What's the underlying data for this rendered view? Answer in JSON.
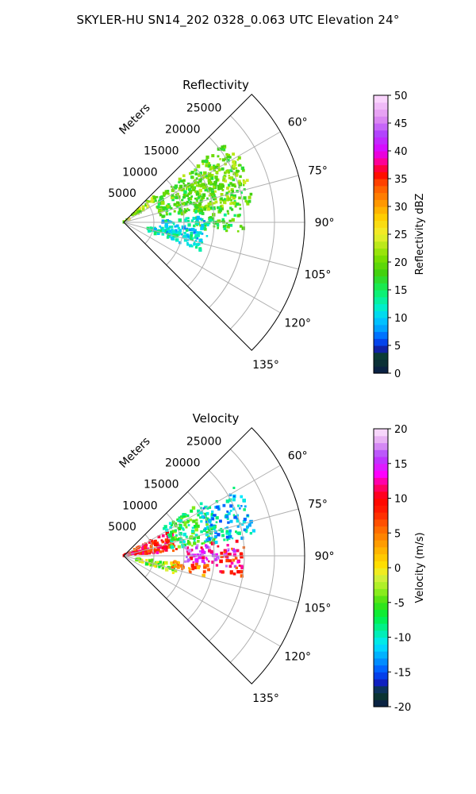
{
  "figure": {
    "title": "SKYLER-HU  SN14_202  0328_0.063 UTC Elevation 24°"
  },
  "chart_data": [
    {
      "type": "heatmap",
      "projection": "polar-sector",
      "title": "Reflectivity",
      "range_label": "Meters",
      "range_ticks": [
        5000,
        10000,
        15000,
        20000,
        25000
      ],
      "range_tick_labels": [
        "5000",
        "10000",
        "15000",
        "20000",
        "25000"
      ],
      "rlim": [
        0,
        30000
      ],
      "azimuth_range_deg": [
        45,
        135
      ],
      "azimuth_ticks_deg": [
        60,
        75,
        90,
        105,
        120,
        135
      ],
      "azimuth_tick_labels": [
        "60°",
        "75°",
        "90°",
        "105°",
        "120°",
        "135°"
      ],
      "grid": true,
      "colorbar": {
        "label": "Reflectivity dBZ",
        "range": [
          0,
          50
        ],
        "ticks": [
          0,
          5,
          10,
          15,
          20,
          25,
          30,
          35,
          40,
          45,
          50
        ],
        "tick_labels": [
          "0",
          "5",
          "10",
          "15",
          "20",
          "25",
          "30",
          "35",
          "40",
          "45",
          "50"
        ]
      },
      "echo_regions": [
        {
          "az": [
            48,
            58
          ],
          "r": [
            0,
            7000
          ],
          "value": 22
        },
        {
          "az": [
            52,
            82
          ],
          "r": [
            6000,
            21000
          ],
          "value": 19
        },
        {
          "az": [
            58,
            82
          ],
          "r": [
            12000,
            22000
          ],
          "value": 20
        },
        {
          "az": [
            80,
            95
          ],
          "r": [
            12000,
            20000
          ],
          "value": 17
        },
        {
          "az": [
            86,
            104
          ],
          "r": [
            6000,
            14000
          ],
          "value": 11
        },
        {
          "az": [
            100,
            110
          ],
          "r": [
            4000,
            14000
          ],
          "value": 12
        }
      ]
    },
    {
      "type": "heatmap",
      "projection": "polar-sector",
      "title": "Velocity",
      "range_label": "Meters",
      "range_ticks": [
        5000,
        10000,
        15000,
        20000,
        25000
      ],
      "range_tick_labels": [
        "5000",
        "10000",
        "15000",
        "20000",
        "25000"
      ],
      "rlim": [
        0,
        30000
      ],
      "azimuth_range_deg": [
        45,
        135
      ],
      "azimuth_ticks_deg": [
        60,
        75,
        90,
        105,
        120,
        135
      ],
      "azimuth_tick_labels": [
        "60°",
        "75°",
        "90°",
        "105°",
        "120°",
        "135°"
      ],
      "grid": true,
      "colorbar": {
        "label": "Velocity (m/s)",
        "range": [
          -20,
          20
        ],
        "ticks": [
          -20,
          -15,
          -10,
          -5,
          0,
          5,
          10,
          15,
          20
        ],
        "tick_labels": [
          "-20",
          "-15",
          "-10",
          "-5",
          "0",
          "5",
          "10",
          "15",
          "20"
        ]
      },
      "echo_regions": [
        {
          "az": [
            60,
            85
          ],
          "r": [
            0,
            9000
          ],
          "value": 9
        },
        {
          "az": [
            55,
            82
          ],
          "r": [
            8000,
            16000
          ],
          "value": -7
        },
        {
          "az": [
            58,
            82
          ],
          "r": [
            14000,
            22000
          ],
          "value": -11
        },
        {
          "az": [
            82,
            96
          ],
          "r": [
            10000,
            19000
          ],
          "value": 14
        },
        {
          "az": [
            86,
            100
          ],
          "r": [
            16000,
            20000
          ],
          "value": 9
        },
        {
          "az": [
            98,
            110
          ],
          "r": [
            2000,
            9000
          ],
          "value": -3
        },
        {
          "az": [
            96,
            104
          ],
          "r": [
            8000,
            15000
          ],
          "value": 5
        }
      ]
    }
  ]
}
